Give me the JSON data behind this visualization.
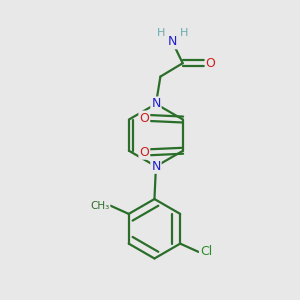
{
  "bg_color": "#e8e8e8",
  "bond_color": "#2a6e2a",
  "N_color": "#2020cc",
  "O_color": "#cc2020",
  "Cl_color": "#2a8c2a",
  "H_color": "#6aadad",
  "figsize": [
    3.0,
    3.0
  ],
  "dpi": 100,
  "xlim": [
    0,
    10
  ],
  "ylim": [
    0,
    10
  ]
}
